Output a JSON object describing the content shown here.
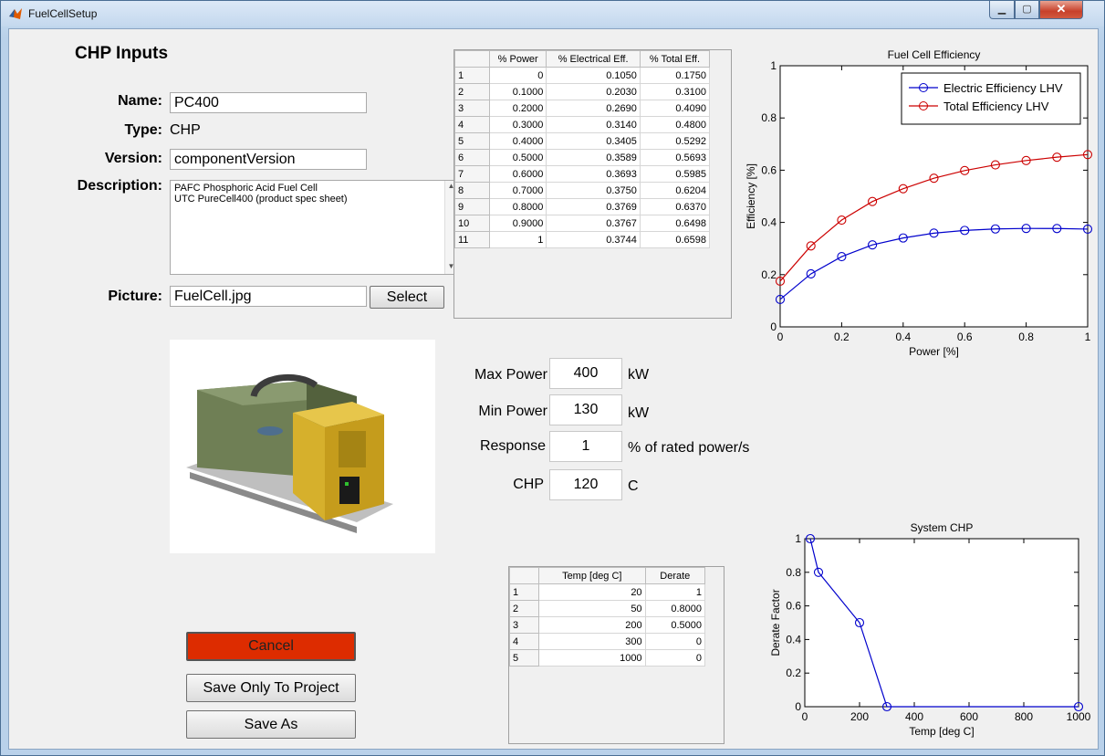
{
  "window": {
    "title": "FuelCellSetup"
  },
  "form": {
    "heading": "CHP Inputs",
    "name_label": "Name:",
    "name_value": "PC400",
    "type_label": "Type:",
    "type_value": "CHP",
    "version_label": "Version:",
    "version_value": "componentVersion",
    "description_label": "Description:",
    "description_lines": [
      "PAFC Phosphoric Acid Fuel Cell",
      "UTC PureCell400 (product spec sheet)"
    ],
    "picture_label": "Picture:",
    "picture_value": "FuelCell.jpg",
    "select_button": "Select"
  },
  "buttons": {
    "cancel": "Cancel",
    "save_project": "Save Only To Project",
    "save_as": "Save As"
  },
  "specs": {
    "max_power_label": "Max Power",
    "max_power_value": "400",
    "max_power_unit": "kW",
    "min_power_label": "Min Power",
    "min_power_value": "130",
    "min_power_unit": "kW",
    "response_label": "Response",
    "response_value": "1",
    "response_unit": "% of rated power/s",
    "chp_label": "CHP",
    "chp_value": "120",
    "chp_unit": "C"
  },
  "efficiency_table": {
    "headers": [
      "% Power",
      "% Electrical Eff.",
      "% Total Eff."
    ],
    "rows": [
      [
        "1",
        "0",
        "0.1050",
        "0.1750"
      ],
      [
        "2",
        "0.1000",
        "0.2030",
        "0.3100"
      ],
      [
        "3",
        "0.2000",
        "0.2690",
        "0.4090"
      ],
      [
        "4",
        "0.3000",
        "0.3140",
        "0.4800"
      ],
      [
        "5",
        "0.4000",
        "0.3405",
        "0.5292"
      ],
      [
        "6",
        "0.5000",
        "0.3589",
        "0.5693"
      ],
      [
        "7",
        "0.6000",
        "0.3693",
        "0.5985"
      ],
      [
        "8",
        "0.7000",
        "0.3750",
        "0.6204"
      ],
      [
        "9",
        "0.8000",
        "0.3769",
        "0.6370"
      ],
      [
        "10",
        "0.9000",
        "0.3767",
        "0.6498"
      ],
      [
        "11",
        "1",
        "0.3744",
        "0.6598"
      ]
    ]
  },
  "derate_table": {
    "headers": [
      "Temp [deg C]",
      "Derate"
    ],
    "rows": [
      [
        "1",
        "20",
        "1"
      ],
      [
        "2",
        "50",
        "0.8000"
      ],
      [
        "3",
        "200",
        "0.5000"
      ],
      [
        "4",
        "300",
        "0"
      ],
      [
        "5",
        "1000",
        "0"
      ]
    ]
  },
  "chart_data": [
    {
      "type": "line",
      "title": "Fuel Cell Efficiency",
      "xlabel": "Power [%]",
      "ylabel": "Efficiency [%]",
      "xlim": [
        0,
        1
      ],
      "ylim": [
        0,
        1
      ],
      "xticks": [
        "0",
        "0.2",
        "0.4",
        "0.6",
        "0.8",
        "1"
      ],
      "yticks": [
        "0",
        "0.2",
        "0.4",
        "0.6",
        "0.8",
        "1"
      ],
      "legend_position": "top-right",
      "x": [
        0,
        0.1,
        0.2,
        0.3,
        0.4,
        0.5,
        0.6,
        0.7,
        0.8,
        0.9,
        1
      ],
      "series": [
        {
          "name": "Electric Efficiency LHV",
          "color": "#0000cc",
          "values": [
            0.105,
            0.203,
            0.269,
            0.314,
            0.3405,
            0.3589,
            0.3693,
            0.375,
            0.3769,
            0.3767,
            0.3744
          ]
        },
        {
          "name": "Total Efficiency LHV",
          "color": "#cc0000",
          "values": [
            0.175,
            0.31,
            0.409,
            0.48,
            0.5292,
            0.5693,
            0.5985,
            0.6204,
            0.637,
            0.6498,
            0.6598
          ]
        }
      ]
    },
    {
      "type": "line",
      "title": "System CHP",
      "xlabel": "Temp [deg C]",
      "ylabel": "Derate Factor",
      "xlim": [
        0,
        1000
      ],
      "ylim": [
        0,
        1
      ],
      "xticks": [
        "0",
        "200",
        "400",
        "600",
        "800",
        "1000"
      ],
      "yticks": [
        "0",
        "0.2",
        "0.4",
        "0.6",
        "0.8",
        "1"
      ],
      "x": [
        20,
        50,
        200,
        300,
        1000
      ],
      "series": [
        {
          "color": "#0000cc",
          "values": [
            1,
            0.8,
            0.5,
            0,
            0
          ]
        }
      ]
    }
  ]
}
